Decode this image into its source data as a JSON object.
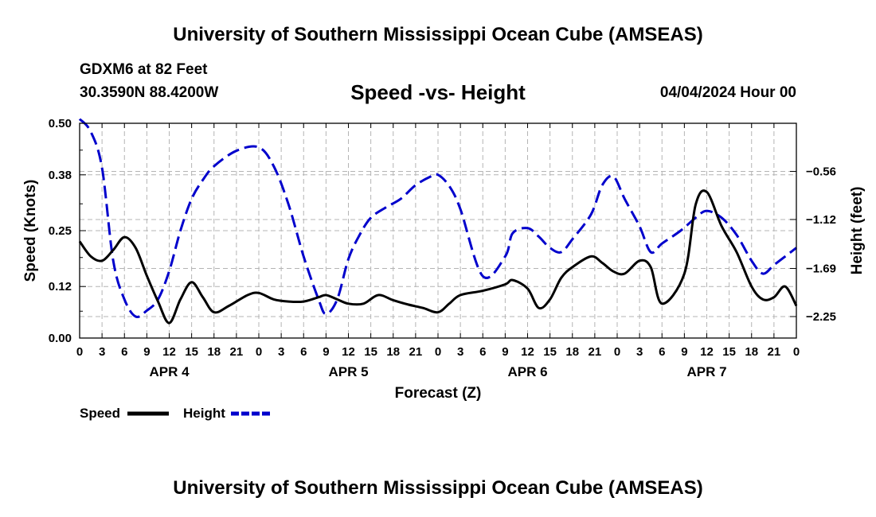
{
  "page": {
    "title_top": "University of Southern Mississippi Ocean Cube (AMSEAS)",
    "station": "GDXM6 at 82 Feet",
    "coords": "30.3590N  88.4200W",
    "subtitle": "Speed -vs- Height",
    "datetime": "04/04/2024 Hour 00",
    "title_bottom": "University of Southern Mississippi Ocean Cube (AMSEAS)"
  },
  "chart_data": {
    "type": "line",
    "title": "Speed -vs- Height",
    "xlabel": "Forecast (Z)",
    "ylabel_left": "Speed (Knots)",
    "ylabel_right": "Height (feet)",
    "x_unit": "forecast hour",
    "xlim": [
      0,
      96
    ],
    "x_tick_step": 3,
    "x_tick_labels": [
      "0",
      "3",
      "6",
      "9",
      "12",
      "15",
      "18",
      "21",
      "0",
      "3",
      "6",
      "9",
      "12",
      "15",
      "18",
      "21",
      "0",
      "3",
      "6",
      "9",
      "12",
      "15",
      "18",
      "21",
      "0",
      "3",
      "6",
      "9",
      "12",
      "15",
      "18",
      "21",
      "0"
    ],
    "day_labels": [
      {
        "label": "APR 4",
        "hour": 12
      },
      {
        "label": "APR 5",
        "hour": 36
      },
      {
        "label": "APR 6",
        "hour": 60
      },
      {
        "label": "APR 7",
        "hour": 84
      }
    ],
    "left_axis": {
      "ylim": [
        0,
        0.5
      ],
      "ticks": [
        0.0,
        0.12,
        0.25,
        0.38,
        0.5
      ],
      "tick_labels": [
        "0.00",
        "0.12",
        "0.25",
        "0.38",
        "0.50"
      ]
    },
    "right_axis": {
      "ylim": [
        -2.5,
        0.0
      ],
      "ticks": [
        -2.25,
        -1.69,
        -1.12,
        -0.56
      ],
      "tick_labels": [
        "−2.25",
        "−1.69",
        "−1.12",
        "−0.56"
      ]
    },
    "grid": true,
    "legend": {
      "position": "bottom-left",
      "entries": [
        {
          "name": "Speed",
          "color": "#000000",
          "style": "solid"
        },
        {
          "name": "Height",
          "color": "#0000cc",
          "style": "dashed"
        }
      ]
    },
    "series": [
      {
        "name": "Speed",
        "axis": "left",
        "color": "#000000",
        "style": "solid",
        "x": [
          0,
          1.5,
          3,
          4.5,
          6,
          7.5,
          9,
          10.5,
          12,
          13.5,
          15,
          16.5,
          18,
          20,
          22.5,
          24,
          26,
          28,
          30,
          32,
          33,
          34.5,
          36,
          38,
          40,
          42,
          44,
          46,
          48,
          49.5,
          51,
          54,
          57,
          58,
          60,
          61.5,
          63,
          64.5,
          66,
          68.5,
          70,
          71.5,
          73,
          75,
          76.5,
          78,
          81,
          82.5,
          84,
          86,
          88,
          90,
          91.5,
          93,
          94.5,
          96
        ],
        "values": [
          0.225,
          0.19,
          0.18,
          0.205,
          0.235,
          0.21,
          0.145,
          0.085,
          0.035,
          0.09,
          0.13,
          0.095,
          0.06,
          0.075,
          0.1,
          0.105,
          0.09,
          0.085,
          0.085,
          0.095,
          0.1,
          0.09,
          0.08,
          0.08,
          0.1,
          0.088,
          0.078,
          0.07,
          0.06,
          0.08,
          0.1,
          0.11,
          0.125,
          0.135,
          0.115,
          0.07,
          0.09,
          0.14,
          0.165,
          0.19,
          0.175,
          0.155,
          0.15,
          0.18,
          0.165,
          0.08,
          0.15,
          0.31,
          0.34,
          0.26,
          0.2,
          0.12,
          0.09,
          0.095,
          0.12,
          0.075
        ]
      },
      {
        "name": "Height",
        "axis": "right",
        "color": "#0000cc",
        "style": "dashed",
        "x": [
          0,
          1.5,
          3,
          4.5,
          6,
          7.5,
          9,
          10.5,
          12,
          13.5,
          15,
          16.5,
          18,
          21,
          24,
          26,
          28,
          30,
          32,
          33,
          34.5,
          36,
          37.5,
          39,
          41,
          43,
          45,
          47,
          48,
          49.5,
          51,
          54,
          57,
          58,
          60,
          61.5,
          63,
          64.5,
          66,
          68.5,
          70,
          71.5,
          73,
          75,
          76.5,
          78,
          80.5,
          82.5,
          84,
          86,
          88,
          90,
          91.5,
          93,
          94.5,
          96
        ],
        "values": [
          0.05,
          -0.1,
          -0.52,
          -1.6,
          -2.05,
          -2.25,
          -2.18,
          -2.05,
          -1.72,
          -1.25,
          -0.88,
          -0.66,
          -0.5,
          -0.32,
          -0.28,
          -0.5,
          -0.95,
          -1.55,
          -2.05,
          -2.22,
          -2.05,
          -1.58,
          -1.3,
          -1.1,
          -0.98,
          -0.88,
          -0.72,
          -0.62,
          -0.6,
          -0.73,
          -1.0,
          -1.78,
          -1.55,
          -1.28,
          -1.22,
          -1.32,
          -1.45,
          -1.5,
          -1.35,
          -1.06,
          -0.72,
          -0.62,
          -0.88,
          -1.2,
          -1.5,
          -1.4,
          -1.25,
          -1.1,
          -1.02,
          -1.1,
          -1.3,
          -1.6,
          -1.75,
          -1.65,
          -1.55,
          -1.45
        ]
      }
    ]
  }
}
